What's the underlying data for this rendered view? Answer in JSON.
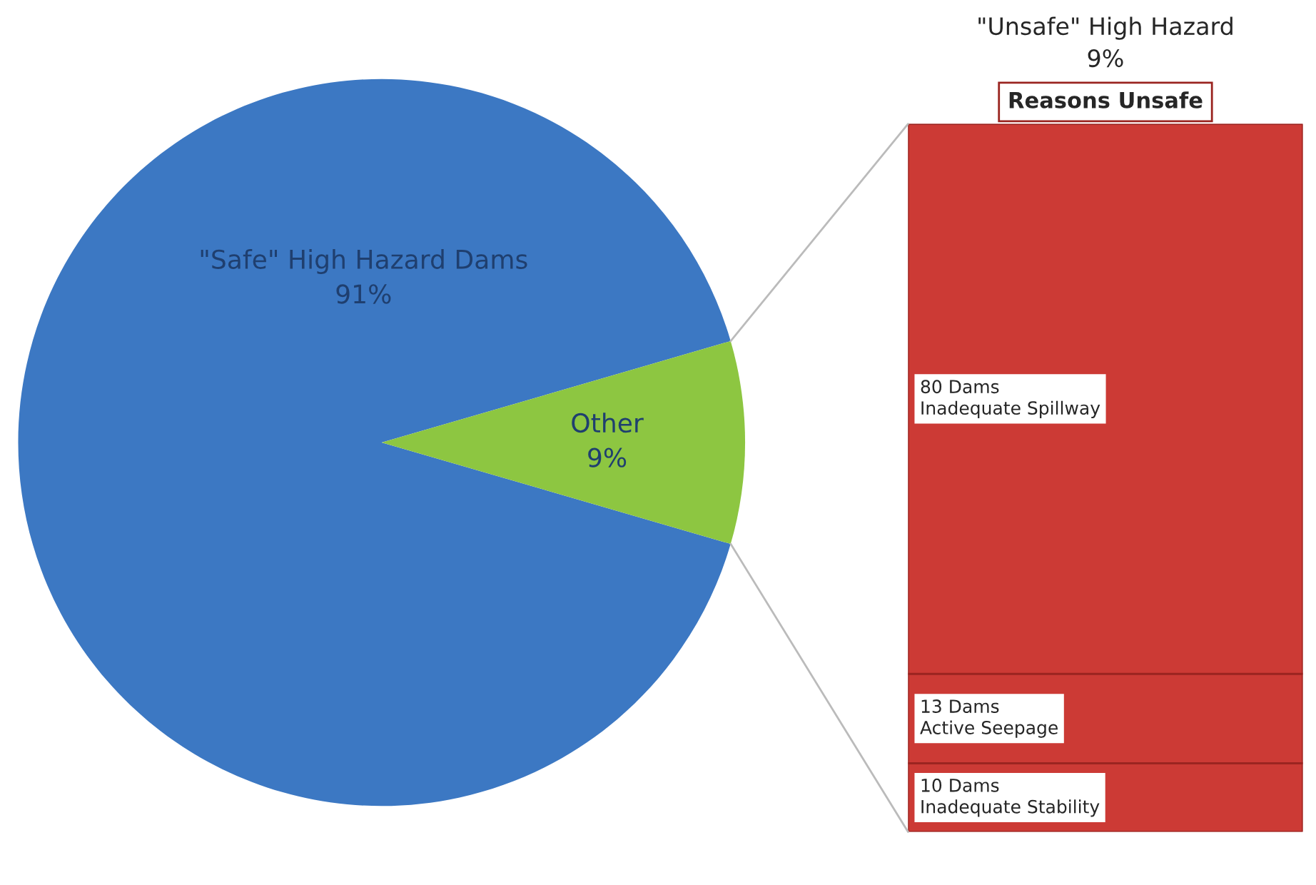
{
  "chart_data": [
    {
      "type": "pie",
      "categories": [
        "\"Safe\" High Hazard Dams",
        "Other"
      ],
      "values": [
        91,
        9
      ],
      "colors": [
        "#3c78c3",
        "#8dc641"
      ],
      "value_labels": [
        "91%",
        "9%"
      ]
    },
    {
      "type": "bar",
      "stacked": true,
      "title": "Reasons Unsafe",
      "categories": [
        null
      ],
      "annotations": [
        "\"Unsafe\" High Hazard\n9%"
      ],
      "series": [
        {
          "color": "#cc3a35",
          "values": [
            10
          ],
          "value_labels": [
            "10 Dams\nInadequate Stability"
          ]
        },
        {
          "color": "#cc3a35",
          "values": [
            13
          ],
          "value_labels": [
            "13 Dams\nActive Seepage"
          ]
        },
        {
          "color": "#cc3a35",
          "values": [
            80
          ],
          "value_labels": [
            "80 Dams\nInadequate Spillway"
          ]
        }
      ]
    }
  ]
}
